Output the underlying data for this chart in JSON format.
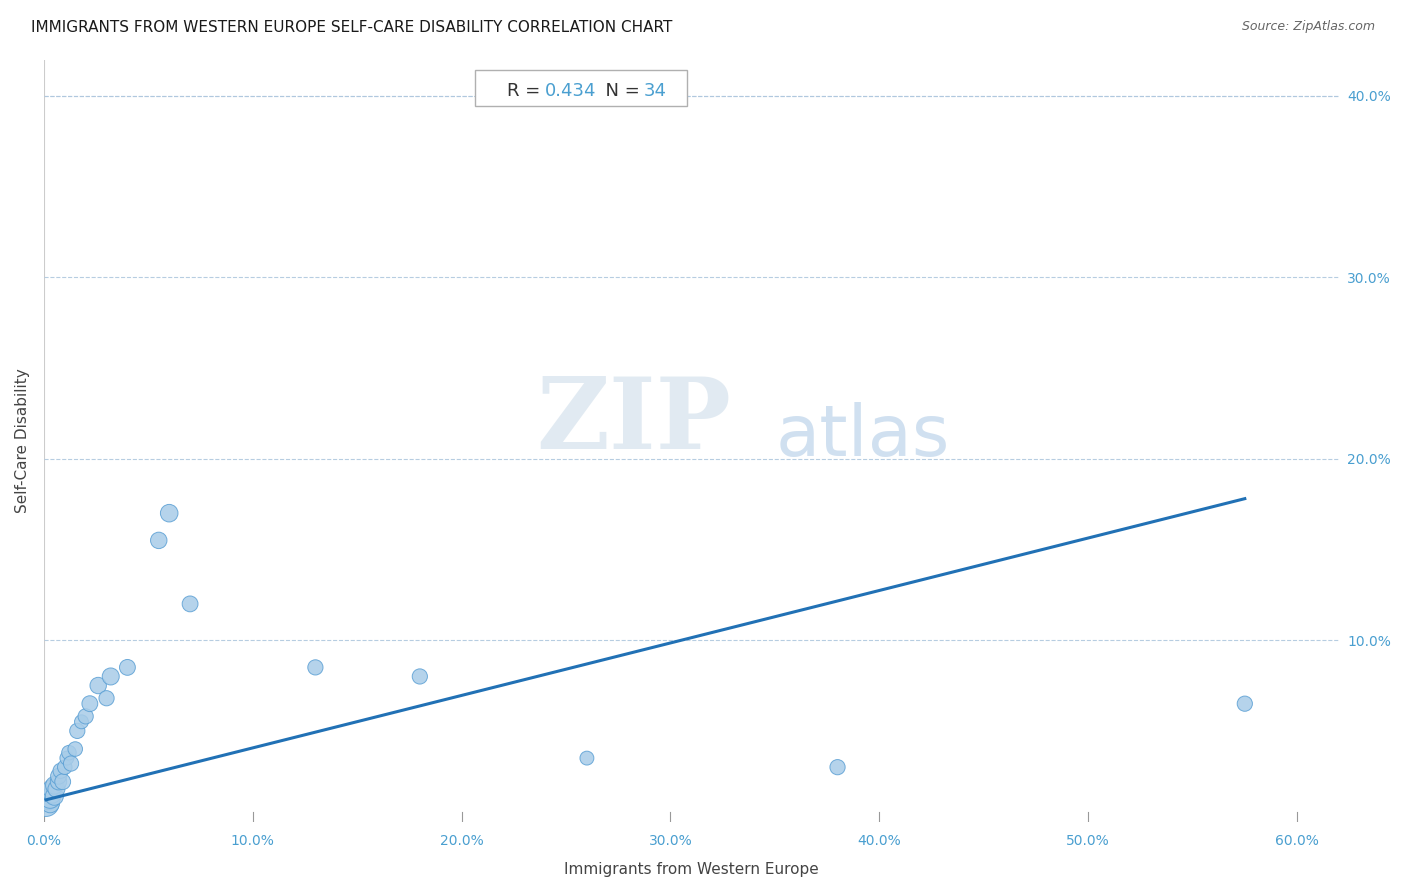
{
  "title": "IMMIGRANTS FROM WESTERN EUROPE SELF-CARE DISABILITY CORRELATION CHART",
  "source": "Source: ZipAtlas.com",
  "xlabel": "Immigrants from Western Europe",
  "ylabel": "Self-Care Disability",
  "R": 0.434,
  "N": 34,
  "xlim": [
    0.0,
    0.62
  ],
  "ylim": [
    0.0,
    0.42
  ],
  "xticks": [
    0.0,
    0.1,
    0.2,
    0.3,
    0.4,
    0.5,
    0.6
  ],
  "xtick_labels": [
    "0.0%",
    "10.0%",
    "20.0%",
    "30.0%",
    "40.0%",
    "50.0%",
    "60.0%"
  ],
  "yticks": [
    0.1,
    0.2,
    0.3,
    0.4
  ],
  "ytick_labels": [
    "10.0%",
    "20.0%",
    "30.0%",
    "40.0%"
  ],
  "scatter_color": "#a8cce8",
  "scatter_edge_color": "#5a9fd4",
  "line_color": "#2171b5",
  "background_color": "#ffffff",
  "points_x": [
    0.001,
    0.002,
    0.003,
    0.003,
    0.004,
    0.004,
    0.005,
    0.005,
    0.006,
    0.007,
    0.007,
    0.008,
    0.009,
    0.01,
    0.011,
    0.012,
    0.013,
    0.015,
    0.016,
    0.018,
    0.02,
    0.022,
    0.026,
    0.03,
    0.032,
    0.04,
    0.055,
    0.06,
    0.07,
    0.13,
    0.18,
    0.26,
    0.38,
    0.575
  ],
  "points_y": [
    0.01,
    0.012,
    0.01,
    0.013,
    0.015,
    0.018,
    0.014,
    0.02,
    0.018,
    0.022,
    0.025,
    0.028,
    0.022,
    0.03,
    0.035,
    0.038,
    0.032,
    0.04,
    0.05,
    0.055,
    0.058,
    0.065,
    0.075,
    0.068,
    0.08,
    0.085,
    0.155,
    0.17,
    0.12,
    0.085,
    0.08,
    0.035,
    0.03,
    0.065
  ],
  "sizes": [
    350,
    200,
    180,
    220,
    160,
    190,
    170,
    160,
    150,
    140,
    130,
    120,
    130,
    110,
    100,
    110,
    120,
    110,
    120,
    100,
    120,
    130,
    140,
    120,
    150,
    130,
    140,
    160,
    130,
    120,
    120,
    100,
    120,
    120
  ],
  "line_x_start": 0.001,
  "line_x_end": 0.575,
  "line_y_start": 0.012,
  "line_y_end": 0.178,
  "title_fontsize": 11,
  "source_fontsize": 9,
  "label_fontsize": 11,
  "tick_fontsize": 10,
  "annot_fontsize": 13
}
